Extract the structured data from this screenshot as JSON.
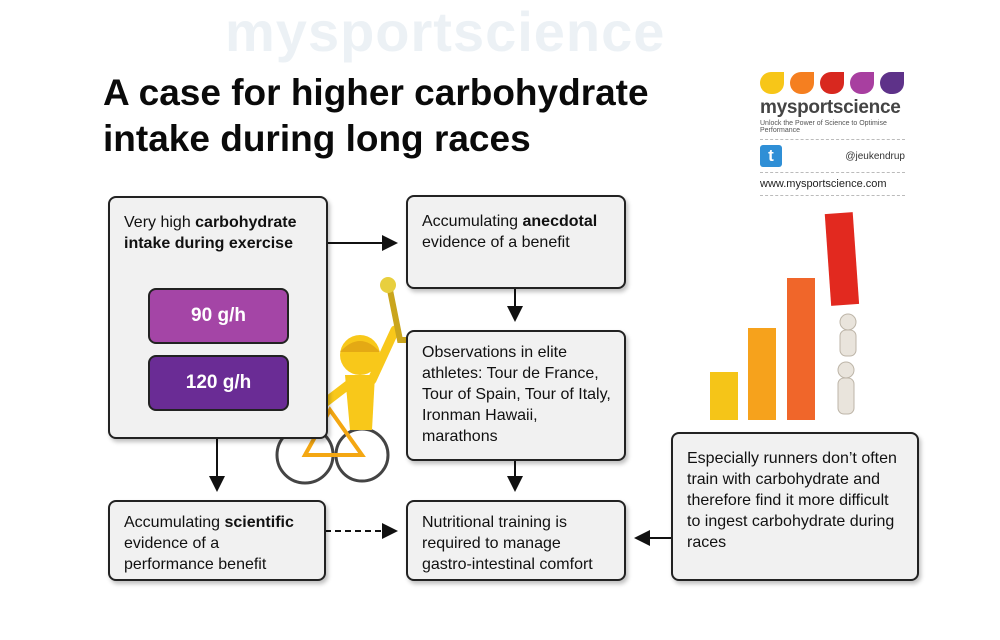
{
  "title": {
    "line1": "A case for higher carbohydrate",
    "line2": "intake during long races"
  },
  "logo": {
    "brand": "mysportscience",
    "tagline": "Unlock the Power of Science to Optimise Performance",
    "twitter_handle": "@jeukendrup",
    "website": "www.mysportscience.com",
    "drop_colors": [
      "#f7c618",
      "#f57f20",
      "#d8281f",
      "#a83fa0",
      "#5e3289"
    ]
  },
  "watermark": "mysportscience",
  "boxes": {
    "intake": {
      "pre": "Very high ",
      "bold": "carbohydrate intake during exercise"
    },
    "rate_90": "90 g/h",
    "rate_120": "120 g/h",
    "anecdotal": {
      "pre": "Accumulating ",
      "bold": "anecdotal",
      "post": " evidence of a benefit"
    },
    "observations": "Observations in elite athletes: Tour de France, Tour of Spain, Tour of Italy, Ironman Hawaii, marathons",
    "scientific": {
      "pre": "Accumulating ",
      "bold": "scientific",
      "post": " evidence of a performance benefit"
    },
    "training": "Nutritional training is required to manage gastro-intestinal comfort",
    "runners": "Especially runners don’t often train with carbohydrate and therefore find it more difficult to ingest carbohydrate during races"
  },
  "colors": {
    "pill_90": "#a445a6",
    "pill_120": "#6a2c95",
    "box_bg": "#f1f1f1"
  }
}
